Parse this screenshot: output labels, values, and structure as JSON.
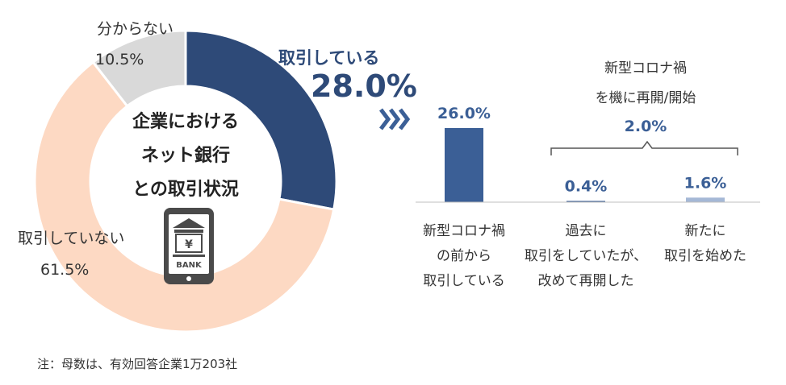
{
  "chart_data": [
    {
      "type": "pie",
      "center_title_lines": [
        "企業における",
        "ネット銀行",
        "との取引状況"
      ],
      "slices": [
        {
          "label": "取引している",
          "value": 28.0,
          "value_label": "28.0%",
          "color": "#2e4a78"
        },
        {
          "label": "取引していない",
          "value": 61.5,
          "value_label": "61.5%",
          "color": "#fdd9c3"
        },
        {
          "label": "分からない",
          "value": 10.5,
          "value_label": "10.5%",
          "color": "#d9d9d9"
        }
      ],
      "center_icon": "smartphone-bank-icon",
      "center_icon_text": "BANK",
      "center_icon_symbol": "¥"
    },
    {
      "type": "bar",
      "categories": [
        [
          "新型コロナ禍",
          "の前から",
          "取引している"
        ],
        [
          "過去に",
          "取引をしていたが、",
          "改めて再開した"
        ],
        [
          "新たに",
          "取引を始めた"
        ]
      ],
      "values": [
        26.0,
        0.4,
        1.6
      ],
      "value_labels": [
        "26.0%",
        "0.4%",
        "1.6%"
      ],
      "colors": [
        "#3b5f96",
        "#3b5f96",
        "#a5b8d6"
      ],
      "ylim": [
        0,
        26.0
      ],
      "group_label_lines": [
        "新型コロナ禍",
        "を機に再開/開始"
      ],
      "group_value_label": "2.0%"
    }
  ],
  "arrow_icon": "chevron-triple-icon",
  "note": "注：母数は、有効回答企業1万203社"
}
